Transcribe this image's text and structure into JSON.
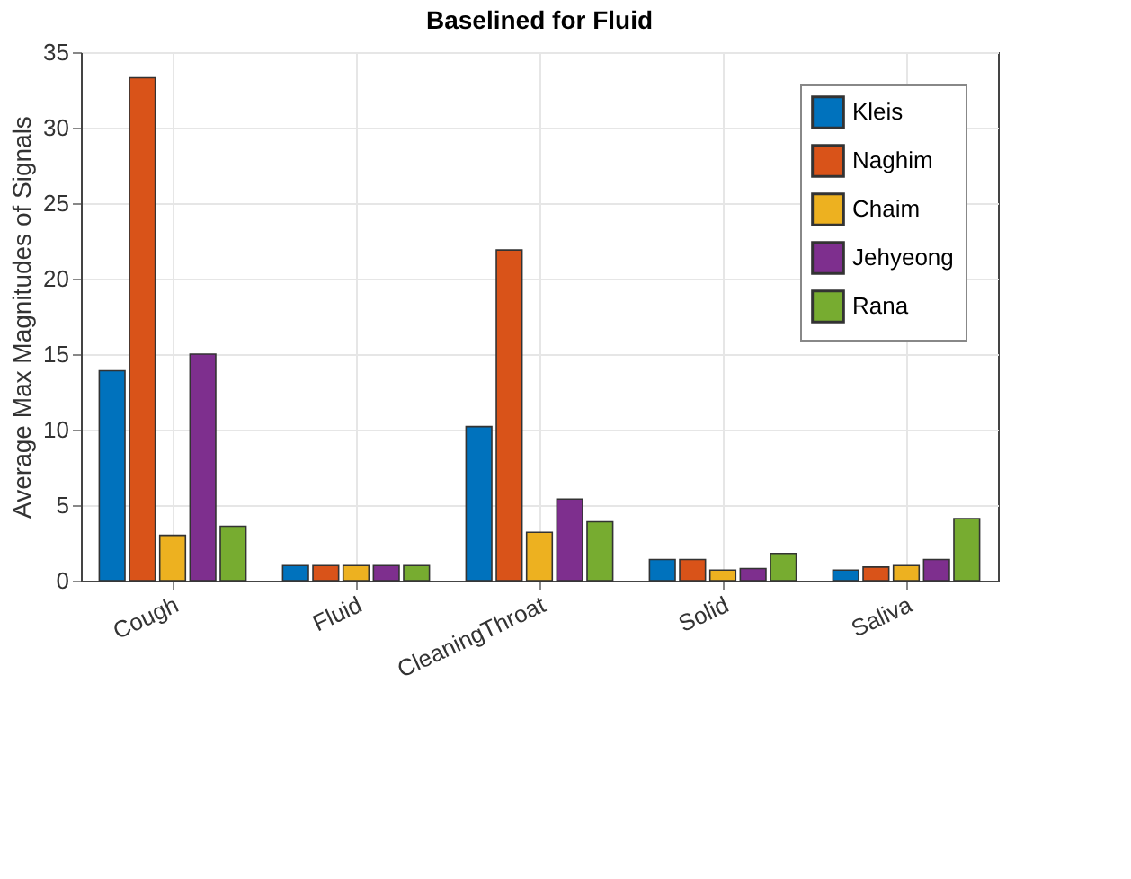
{
  "chart_data": {
    "type": "bar",
    "title": "Baselined for Fluid",
    "ylabel": "Average Max Magnitudes of Signals",
    "categories": [
      "Cough",
      "Fluid",
      "CleaningThroat",
      "Solid",
      "Saliva"
    ],
    "series": [
      {
        "name": "Kleis",
        "color": "#0072bd",
        "values": [
          13.9,
          1.0,
          10.2,
          1.4,
          0.7
        ]
      },
      {
        "name": "Naghim",
        "color": "#d95319",
        "values": [
          33.3,
          1.0,
          21.9,
          1.4,
          0.9
        ]
      },
      {
        "name": "Chaim",
        "color": "#edb120",
        "values": [
          3.0,
          1.0,
          3.2,
          0.7,
          1.0
        ]
      },
      {
        "name": "Jehyeong",
        "color": "#7e2f8e",
        "values": [
          15.0,
          1.0,
          5.4,
          0.8,
          1.4
        ]
      },
      {
        "name": "Rana",
        "color": "#77ac30",
        "values": [
          3.6,
          1.0,
          3.9,
          1.8,
          4.1
        ]
      }
    ],
    "ylim": [
      0,
      35
    ],
    "yticks": [
      0,
      5,
      10,
      15,
      20,
      25,
      30,
      35
    ],
    "grid": true,
    "legend": "top right"
  }
}
